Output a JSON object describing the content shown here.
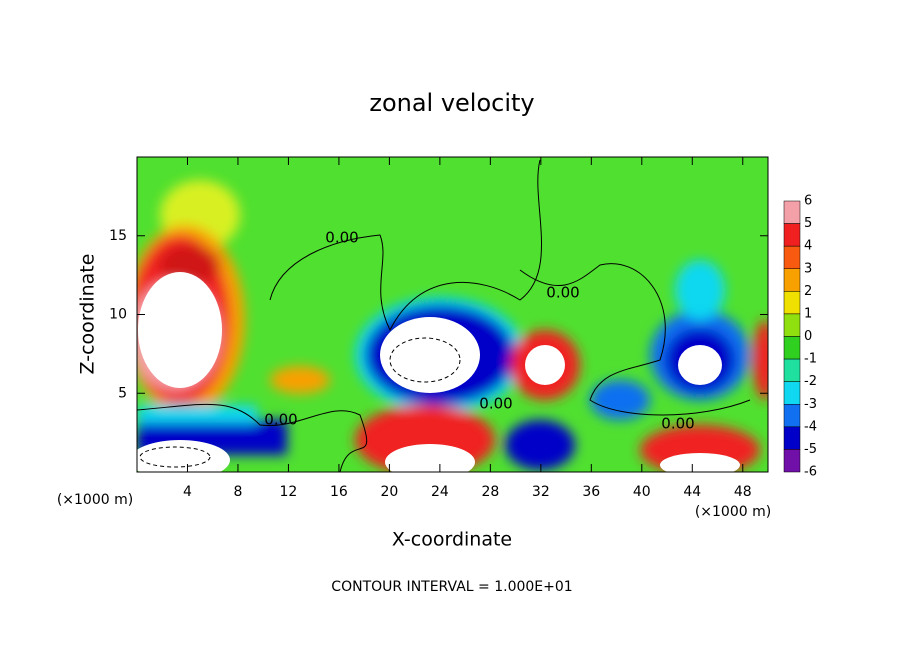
{
  "chart_data": {
    "type": "contour",
    "title": "zonal velocity",
    "x_label": "X-coordinate",
    "y_label": "Z-coordinate",
    "x_unit": "(×1000 m)",
    "y_unit": "(×1000 m)",
    "footer": "CONTOUR INTERVAL = 1.000E+01",
    "contour_labels": [
      "0.00",
      "0.00",
      "0.00",
      "0.00",
      "0.00"
    ],
    "xlim": [
      0,
      50
    ],
    "xticks": [
      4,
      8,
      12,
      16,
      20,
      24,
      28,
      32,
      36,
      40,
      44,
      48
    ],
    "ylim": [
      0,
      20
    ],
    "yticks": [
      5,
      10,
      15
    ],
    "colorbar": {
      "ticks": [
        6,
        5,
        4,
        3,
        2,
        1,
        0,
        -1,
        -2,
        -3,
        -4,
        -5,
        -6
      ],
      "colors": [
        "#f4a0a8",
        "#f02020",
        "#f85a10",
        "#f8a000",
        "#f0e000",
        "#90e010",
        "#30d020",
        "#20e0a0",
        "#10d8f0",
        "#1070f0",
        "#0000c8",
        "#7010a8"
      ]
    }
  }
}
